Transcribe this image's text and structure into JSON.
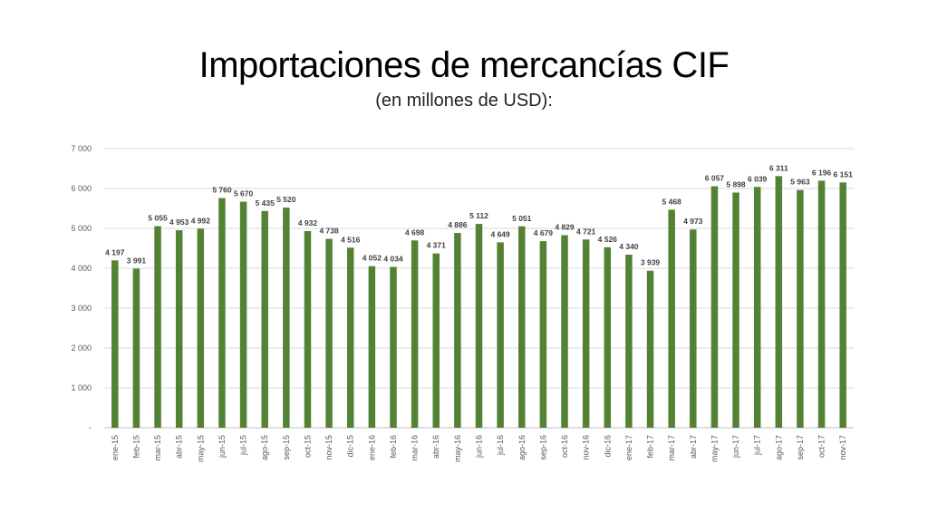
{
  "title": "Importaciones de mercancías CIF",
  "subtitle": "(en millones de USD):",
  "colors": {
    "bar": "#548235",
    "grid": "#d9d9d9",
    "axis": "#bfbfbf",
    "text": "#595959"
  },
  "chart_data": {
    "type": "bar",
    "categories": [
      "ene-15",
      "feb-15",
      "mar-15",
      "abr-15",
      "may-15",
      "jun-15",
      "jul-15",
      "ago-15",
      "sep-15",
      "oct-15",
      "nov-15",
      "dic-15",
      "ene-16",
      "feb-16",
      "mar-16",
      "abr-16",
      "may-16",
      "jun-16",
      "jul-16",
      "ago-16",
      "sep-16",
      "oct-16",
      "nov-16",
      "dic-16",
      "ene-17",
      "feb-17",
      "mar-17",
      "abr-17",
      "may-17",
      "jun-17",
      "jul-17",
      "ago-17",
      "sep-17",
      "oct-17",
      "nov-17"
    ],
    "values": [
      4197,
      3991,
      5055,
      4953,
      4992,
      5760,
      5670,
      5435,
      5520,
      4932,
      4738,
      4516,
      4052,
      4034,
      4698,
      4371,
      4886,
      5112,
      4649,
      5051,
      4679,
      4829,
      4721,
      4526,
      4340,
      3939,
      5468,
      4973,
      6057,
      5898,
      6039,
      6311,
      5963,
      6196,
      6151
    ],
    "data_labels": [
      "4 197",
      "3 991",
      "5 055",
      "4 953",
      "4 992",
      "5 760",
      "5 670",
      "5 435",
      "5 520",
      "4 932",
      "4 738",
      "4 516",
      "4 052",
      "4 034",
      "4 698",
      "4 371",
      "4 886",
      "5 112",
      "4 649",
      "5 051",
      "4 679",
      "4 829",
      "4 721",
      "4 526",
      "4 340",
      "3 939",
      "5 468",
      "4 973",
      "6 057",
      "5 898",
      "6 039",
      "6 311",
      "5 963",
      "6 196",
      "6 151"
    ],
    "ylim": [
      0,
      7000
    ],
    "yticks": [
      0,
      1000,
      2000,
      3000,
      4000,
      5000,
      6000,
      7000
    ],
    "ytick_labels": [
      "-",
      "1 000",
      "2 000",
      "3 000",
      "4 000",
      "5 000",
      "6 000",
      "7 000"
    ],
    "grid": true,
    "legend": "none",
    "xlabel": "",
    "ylabel": ""
  }
}
